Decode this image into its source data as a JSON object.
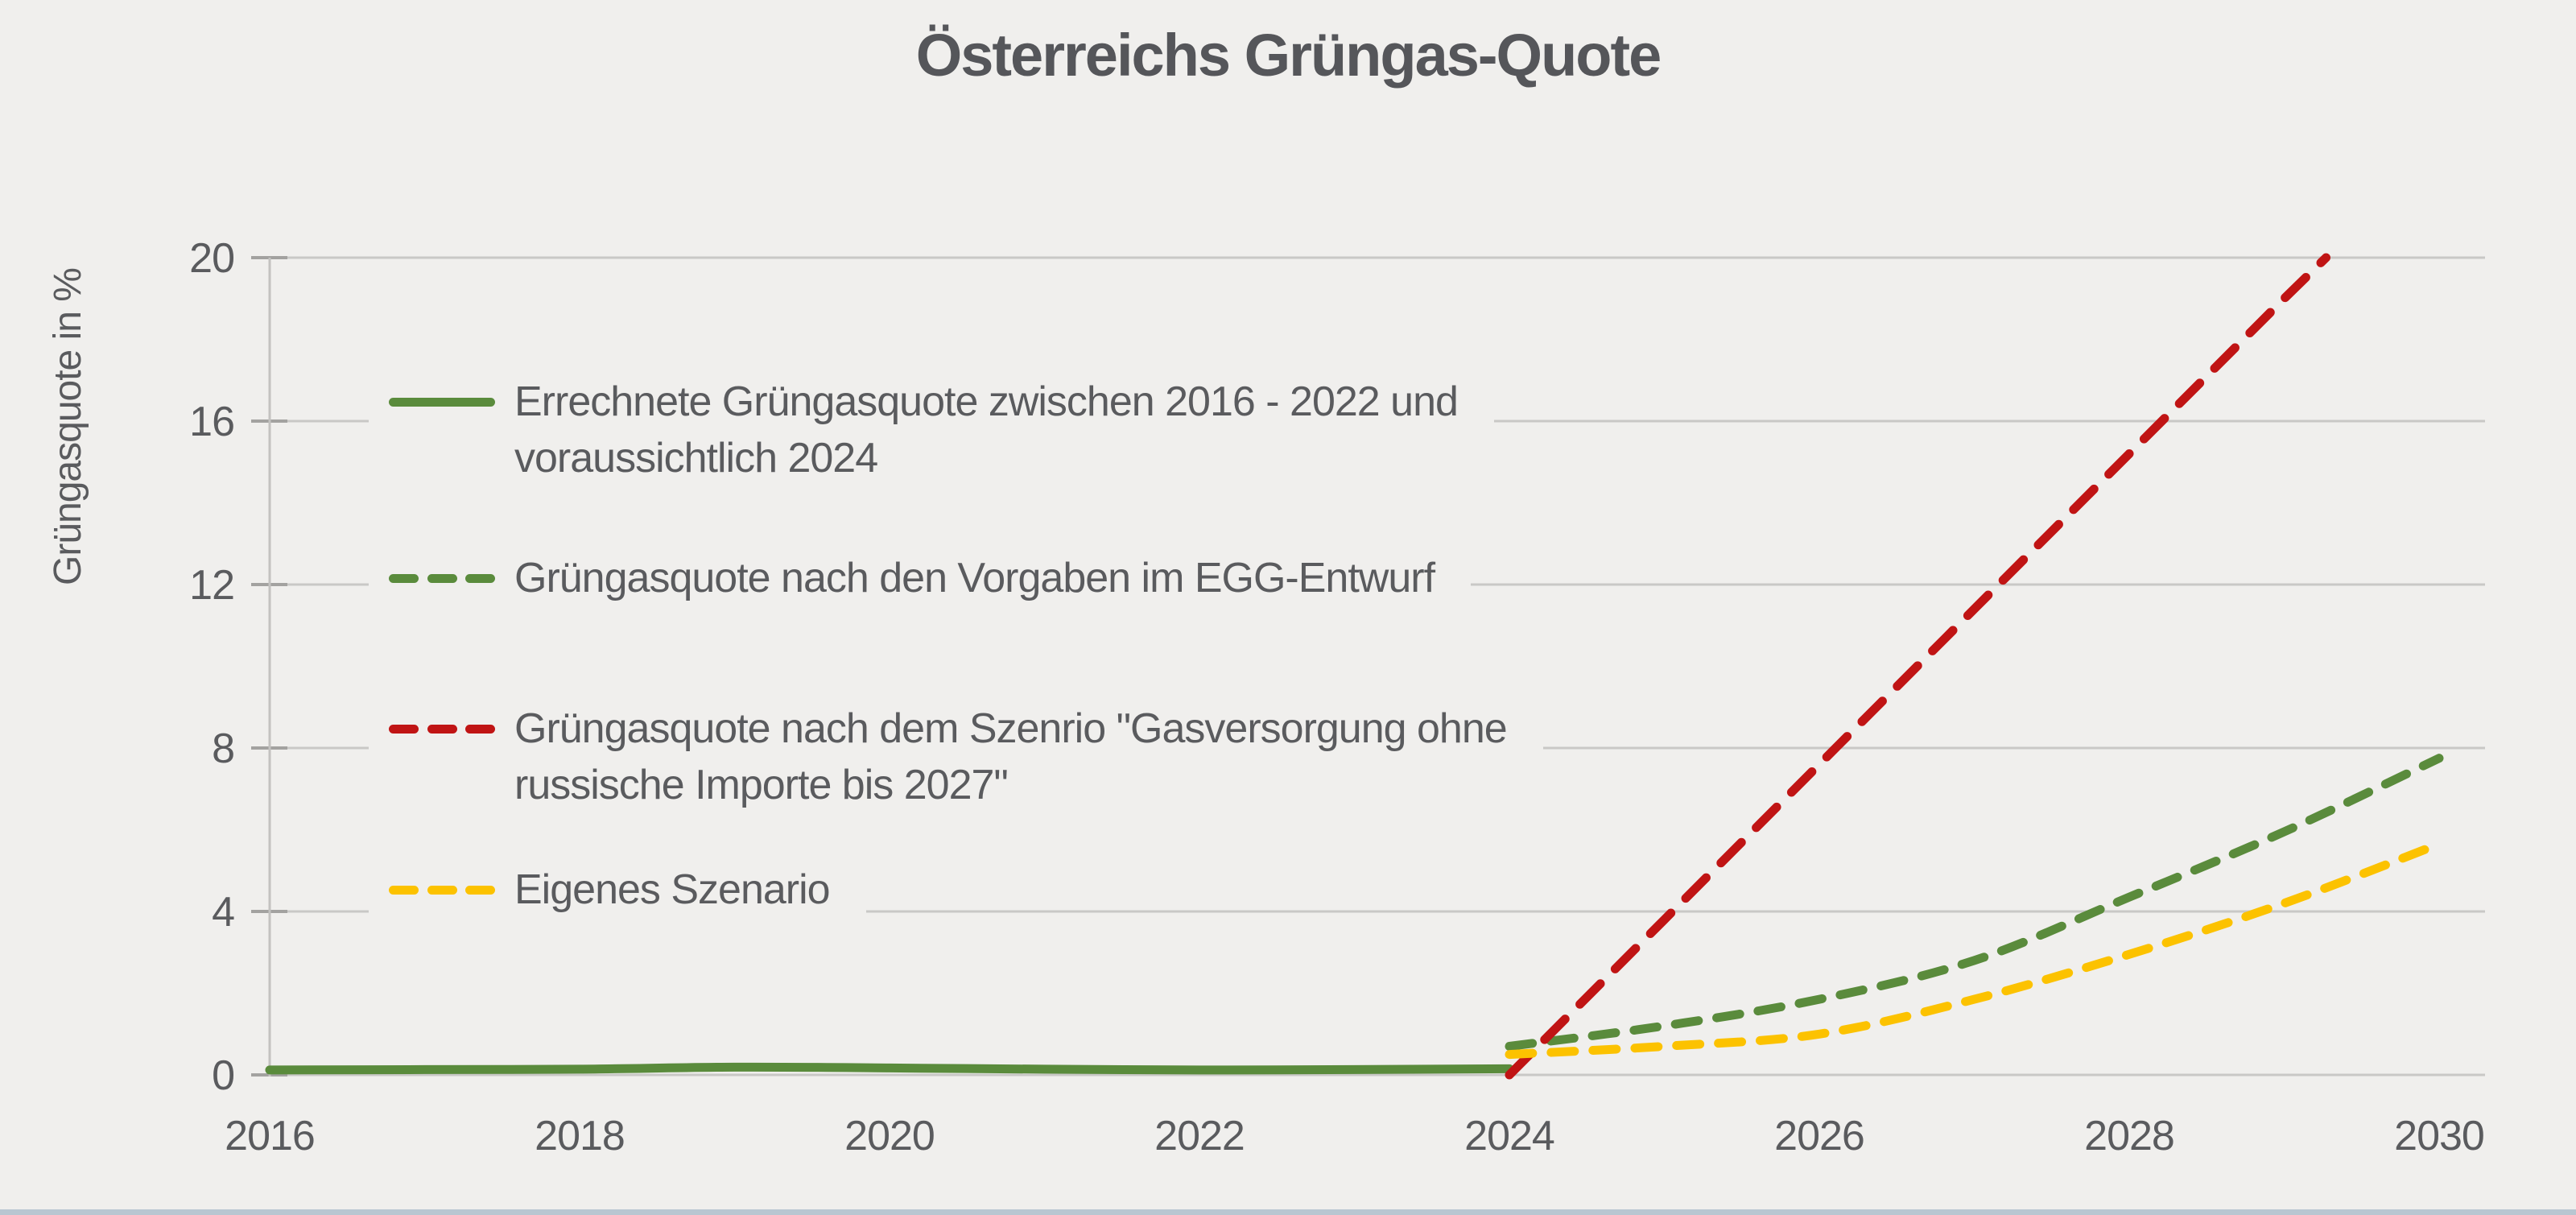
{
  "title": "Österreichs Grüngas-Quote",
  "colors": {
    "background": "#f0efed",
    "title_text": "#55565a",
    "label_text": "#5a5b5e",
    "gridline": "#c9c8c6",
    "tick": "#a3a2a0",
    "axis_line": "#c3c2c0",
    "green": "#5a8b3c",
    "red": "#c01414",
    "yellow": "#fcc200",
    "footer_strip": "#b9c6d1"
  },
  "legend": {
    "entries": [
      {
        "style": "solid",
        "color": "#5a8b3c",
        "lines": [
          "Errechnete Grüngasquote zwischen 2016 - 2022 und",
          "voraussichtlich 2024"
        ]
      },
      {
        "style": "dashed",
        "color": "#5a8b3c",
        "lines": [
          "Grüngasquote nach den Vorgaben im EGG-Entwurf"
        ]
      },
      {
        "style": "dashed",
        "color": "#c01414",
        "lines": [
          "Grüngasquote nach dem Szenrio \"Gasversorgung ohne",
          "russische Importe bis 2027\""
        ]
      },
      {
        "style": "dashed",
        "color": "#fcc200",
        "lines": [
          "Eigenes Szenario"
        ]
      }
    ]
  },
  "chart_data": {
    "type": "line",
    "title": "Österreichs Grüngas-Quote",
    "xlabel": "",
    "ylabel": "Grüngasquote in %",
    "xlim": [
      2016,
      2030.3
    ],
    "ylim": [
      0,
      20
    ],
    "grid": true,
    "legend_position": "inside-top-left",
    "xticks": [
      2016,
      2018,
      2020,
      2022,
      2024,
      2026,
      2028,
      2030
    ],
    "yticks": [
      0,
      4,
      8,
      12,
      16,
      20
    ],
    "series": [
      {
        "name": "Errechnete Grüngasquote zwischen 2016 - 2022 und voraussichtlich 2024",
        "color": "#5a8b3c",
        "dash": "solid",
        "smooth": true,
        "points": [
          [
            2016,
            0.12
          ],
          [
            2017,
            0.13
          ],
          [
            2018,
            0.14
          ],
          [
            2019,
            0.19
          ],
          [
            2020,
            0.17
          ],
          [
            2021,
            0.14
          ],
          [
            2022,
            0.12
          ],
          [
            2023,
            0.13
          ],
          [
            2024,
            0.15
          ]
        ]
      },
      {
        "name": "Grüngasquote nach den Vorgaben im EGG-Entwurf",
        "color": "#5a8b3c",
        "dash": "dashed",
        "smooth": true,
        "points": [
          [
            2024,
            0.7
          ],
          [
            2025,
            1.2
          ],
          [
            2026,
            1.85
          ],
          [
            2027,
            2.8
          ],
          [
            2028,
            4.35
          ],
          [
            2029,
            5.95
          ],
          [
            2030,
            7.75
          ]
        ]
      },
      {
        "name": "Grüngasquote nach dem Szenrio \"Gasversorgung ohne russische Importe bis 2027\"",
        "color": "#c01414",
        "dash": "dashed",
        "dasharray": "36 26",
        "smooth": false,
        "points": [
          [
            2024,
            0
          ],
          [
            2025,
            3.8
          ],
          [
            2026,
            7.6
          ],
          [
            2027,
            11.4
          ],
          [
            2028,
            15.2
          ],
          [
            2029,
            19.0
          ],
          [
            2029.27,
            20.0
          ]
        ]
      },
      {
        "name": "Eigenes Szenario",
        "color": "#fcc200",
        "dash": "dashed",
        "smooth": true,
        "points": [
          [
            2024,
            0.5
          ],
          [
            2025,
            0.7
          ],
          [
            2026,
            1.0
          ],
          [
            2027,
            1.85
          ],
          [
            2028,
            2.95
          ],
          [
            2029,
            4.2
          ],
          [
            2030,
            5.65
          ]
        ]
      }
    ]
  }
}
